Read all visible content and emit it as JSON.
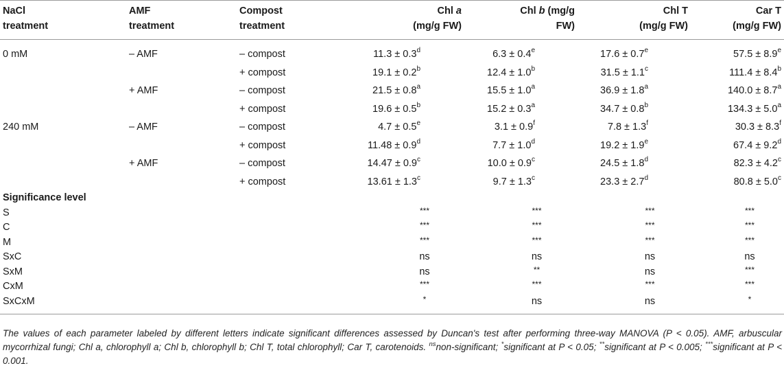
{
  "headers": {
    "nacl": [
      "NaCl",
      "treatment"
    ],
    "amf": [
      "AMF",
      "treatment"
    ],
    "compost": [
      "Compost",
      "treatment"
    ],
    "chla": [
      "Chl ",
      "a",
      "(mg/g FW)"
    ],
    "chlb": [
      "Chl ",
      "b",
      " (mg/g",
      "FW)"
    ],
    "chlt": [
      "Chl T",
      "(mg/g FW)"
    ],
    "cart": [
      "Car T",
      "(mg/g FW)"
    ]
  },
  "rows": [
    {
      "nacl": "0 mM",
      "amf": "– AMF",
      "compost": "– compost",
      "chla": "11.3 ± 0.3",
      "chla_s": "d",
      "chlb": "6.3 ± 0.4",
      "chlb_s": "e",
      "chlt": "17.6 ± 0.7",
      "chlt_s": "e",
      "cart": "57.5 ± 8.9",
      "cart_s": "e"
    },
    {
      "nacl": "",
      "amf": "",
      "compost": "+ compost",
      "chla": "19.1 ± 0.2",
      "chla_s": "b",
      "chlb": "12.4 ± 1.0",
      "chlb_s": "b",
      "chlt": "31.5 ± 1.1",
      "chlt_s": "c",
      "cart": "111.4 ± 8.4",
      "cart_s": "b"
    },
    {
      "nacl": "",
      "amf": "+ AMF",
      "compost": "– compost",
      "chla": "21.5 ± 0.8",
      "chla_s": "a",
      "chlb": "15.5 ± 1.0",
      "chlb_s": "a",
      "chlt": "36.9 ± 1.8",
      "chlt_s": "a",
      "cart": "140.0 ± 8.7",
      "cart_s": "a"
    },
    {
      "nacl": "",
      "amf": "",
      "compost": "+ compost",
      "chla": "19.6 ± 0.5",
      "chla_s": "b",
      "chlb": "15.2 ± 0.3",
      "chlb_s": "a",
      "chlt": "34.7 ± 0.8",
      "chlt_s": "b",
      "cart": "134.3 ± 5.0",
      "cart_s": "a"
    },
    {
      "nacl": "240 mM",
      "amf": "– AMF",
      "compost": "– compost",
      "chla": "4.7 ± 0.5",
      "chla_s": "e",
      "chlb": "3.1 ± 0.9",
      "chlb_s": "f",
      "chlt": "7.8 ± 1.3",
      "chlt_s": "f",
      "cart": "30.3 ± 8.3",
      "cart_s": "f"
    },
    {
      "nacl": "",
      "amf": "",
      "compost": "+ compost",
      "chla": "11.48 ± 0.9",
      "chla_s": "d",
      "chlb": "7.7 ± 1.0",
      "chlb_s": "d",
      "chlt": "19.2 ± 1.9",
      "chlt_s": "e",
      "cart": "67.4 ± 9.2",
      "cart_s": "d"
    },
    {
      "nacl": "",
      "amf": "+ AMF",
      "compost": "– compost",
      "chla": "14.47 ± 0.9",
      "chla_s": "c",
      "chlb": "10.0 ± 0.9",
      "chlb_s": "c",
      "chlt": "24.5 ± 1.8",
      "chlt_s": "d",
      "cart": "82.3 ± 4.2",
      "cart_s": "c"
    },
    {
      "nacl": "",
      "amf": "",
      "compost": "+ compost",
      "chla": "13.61 ± 1.3",
      "chla_s": "c",
      "chlb": "9.7 ± 1.3",
      "chlb_s": "c",
      "chlt": "23.3 ± 2.7",
      "chlt_s": "d",
      "cart": "80.8 ± 5.0",
      "cart_s": "c"
    }
  ],
  "significance": {
    "title": "Significance level",
    "rows": [
      {
        "label": "S",
        "chla": "***",
        "chlb": "***",
        "chlt": "***",
        "cart": "***"
      },
      {
        "label": "C",
        "chla": "***",
        "chlb": "***",
        "chlt": "***",
        "cart": "***"
      },
      {
        "label": "M",
        "chla": "***",
        "chlb": "***",
        "chlt": "***",
        "cart": "***"
      },
      {
        "label": "SxC",
        "chla": "ns",
        "chlb": "ns",
        "chlt": "ns",
        "cart": "ns"
      },
      {
        "label": "SxM",
        "chla": "ns",
        "chlb": "**",
        "chlt": "ns",
        "cart": "***"
      },
      {
        "label": "CxM",
        "chla": "***",
        "chlb": "***",
        "chlt": "***",
        "cart": "***"
      },
      {
        "label": "SxCxM",
        "chla": "*",
        "chlb": "ns",
        "chlt": "ns",
        "cart": "*"
      }
    ]
  },
  "footnote": {
    "p1": "The values of each parameter labeled by different letters indicate significant differences assessed by Duncan's test after performing three-way MANOVA (P < 0.05). AMF, arbuscular mycorrhizal fungi; Chl a, chlorophyll a; Chl b, chlorophyll b; Chl T, total chlorophyll; Car T, carotenoids. ",
    "ns_sup": "ns",
    "p2": "non-significant; ",
    "s1_sup": "*",
    "p3": "significant at P < 0.05; ",
    "s2_sup": "**",
    "p4": "significant at P < 0.005; ",
    "s3_sup": "***",
    "p5": "significant at P < 0.001."
  }
}
